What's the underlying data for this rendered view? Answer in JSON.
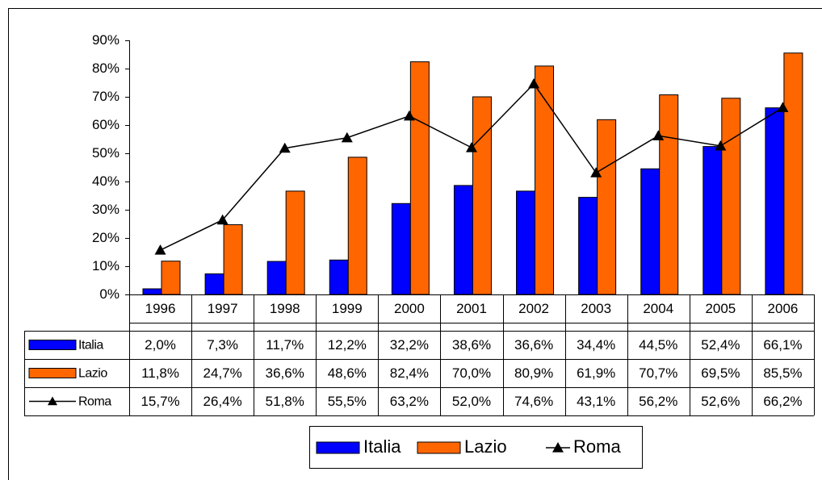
{
  "chart_data": {
    "type": "bar",
    "categories": [
      "1996",
      "1997",
      "1998",
      "1999",
      "2000",
      "2001",
      "2002",
      "2003",
      "2004",
      "2005",
      "2006"
    ],
    "series": [
      {
        "name": "Italia",
        "type": "bar",
        "color": "#0000ff",
        "values": [
          2.0,
          7.3,
          11.7,
          12.2,
          32.2,
          38.6,
          36.6,
          34.4,
          44.5,
          52.4,
          66.1
        ],
        "value_labels": [
          "2,0%",
          "7,3%",
          "11,7%",
          "12,2%",
          "32,2%",
          "38,6%",
          "36,6%",
          "34,4%",
          "44,5%",
          "52,4%",
          "66,1%"
        ]
      },
      {
        "name": "Lazio",
        "type": "bar",
        "color": "#ff6600",
        "values": [
          11.8,
          24.7,
          36.6,
          48.6,
          82.4,
          70.0,
          80.9,
          61.9,
          70.7,
          69.5,
          85.5
        ],
        "value_labels": [
          "11,8%",
          "24,7%",
          "36,6%",
          "48,6%",
          "82,4%",
          "70,0%",
          "80,9%",
          "61,9%",
          "70,7%",
          "69,5%",
          "85,5%"
        ]
      },
      {
        "name": "Roma",
        "type": "line",
        "color": "#000000",
        "values": [
          15.7,
          26.4,
          51.8,
          55.5,
          63.2,
          52.0,
          74.6,
          43.1,
          56.2,
          52.6,
          66.2
        ],
        "value_labels": [
          "15,7%",
          "26,4%",
          "51,8%",
          "55,5%",
          "63,2%",
          "52,0%",
          "74,6%",
          "43,1%",
          "56,2%",
          "52,6%",
          "66,2%"
        ]
      }
    ],
    "ylim": [
      0,
      90
    ],
    "yticks": [
      {
        "value": 0,
        "label": "0%"
      },
      {
        "value": 10,
        "label": "10%"
      },
      {
        "value": 20,
        "label": "20%"
      },
      {
        "value": 30,
        "label": "30%"
      },
      {
        "value": 40,
        "label": "40%"
      },
      {
        "value": 50,
        "label": "50%"
      },
      {
        "value": 60,
        "label": "60%"
      },
      {
        "value": 70,
        "label": "70%"
      },
      {
        "value": 80,
        "label": "80%"
      },
      {
        "value": 90,
        "label": "90%"
      }
    ],
    "grid": false
  }
}
